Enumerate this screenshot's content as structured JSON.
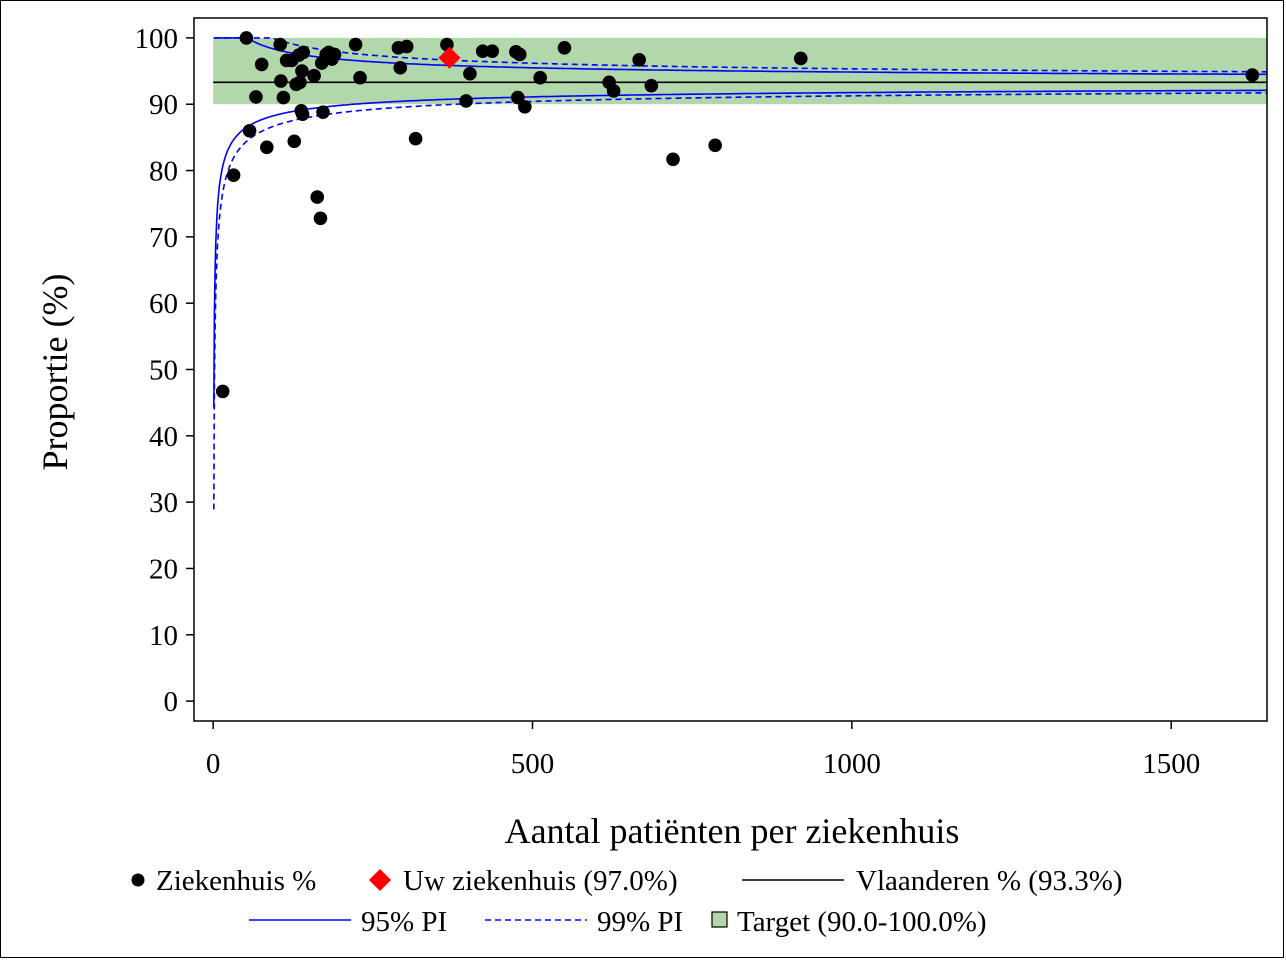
{
  "chart_data": {
    "type": "scatter",
    "xlabel": "Aantal patiënten per ziekenhuis",
    "ylabel": "Proportie (%)",
    "xlim": [
      -30,
      1650
    ],
    "ylim": [
      -3,
      103
    ],
    "xticks": [
      0,
      500,
      1000,
      1500
    ],
    "yticks": [
      0,
      10,
      20,
      30,
      40,
      50,
      60,
      70,
      80,
      90,
      100
    ],
    "xtick_labels": [
      "0",
      "500",
      "1000",
      "1500"
    ],
    "ytick_labels": [
      "0",
      "10",
      "20",
      "30",
      "40",
      "50",
      "60",
      "70",
      "80",
      "90",
      "100"
    ],
    "grid": false,
    "legend_position": "bottom",
    "series": [
      {
        "name": "Ziekenhuis %",
        "marker": "circle",
        "color": "#000000",
        "points": [
          [
            15,
            46.7
          ],
          [
            32,
            79.3
          ],
          [
            52,
            100
          ],
          [
            57,
            86.0
          ],
          [
            67,
            91.1
          ],
          [
            76,
            96.0
          ],
          [
            84,
            83.5
          ],
          [
            105,
            99.0
          ],
          [
            106,
            93.5
          ],
          [
            110,
            91.0
          ],
          [
            115,
            96.6
          ],
          [
            123,
            96.6
          ],
          [
            127,
            84.4
          ],
          [
            130,
            93.0
          ],
          [
            134,
            97.4
          ],
          [
            136,
            93.3
          ],
          [
            138,
            89.0
          ],
          [
            139,
            95.0
          ],
          [
            140,
            88.5
          ],
          [
            141,
            97.8
          ],
          [
            158,
            94.3
          ],
          [
            163,
            76.0
          ],
          [
            168,
            72.8
          ],
          [
            170,
            96.2
          ],
          [
            172,
            88.8
          ],
          [
            177,
            97.5
          ],
          [
            181,
            97.8
          ],
          [
            186,
            96.8
          ],
          [
            190,
            97.5
          ],
          [
            223,
            99.0
          ],
          [
            230,
            94.0
          ],
          [
            290,
            98.5
          ],
          [
            293,
            95.5
          ],
          [
            303,
            98.7
          ],
          [
            317,
            84.8
          ],
          [
            366,
            99.0
          ],
          [
            396,
            90.5
          ],
          [
            402,
            94.6
          ],
          [
            422,
            98.0
          ],
          [
            437,
            98.0
          ],
          [
            474,
            97.9
          ],
          [
            477,
            91.0
          ],
          [
            480,
            97.5
          ],
          [
            488,
            89.6
          ],
          [
            512,
            94.0
          ],
          [
            550,
            98.5
          ],
          [
            620,
            93.3
          ],
          [
            627,
            92.0
          ],
          [
            667,
            96.7
          ],
          [
            686,
            92.8
          ],
          [
            720,
            81.7
          ],
          [
            786,
            83.8
          ],
          [
            920,
            96.9
          ],
          [
            1627,
            94.4
          ]
        ]
      },
      {
        "name": "Uw ziekenhuis (97.0%)",
        "marker": "diamond",
        "color": "#ff0000",
        "points": [
          [
            370,
            97.0
          ]
        ]
      },
      {
        "name": "Vlaanderen % (93.3%)",
        "type": "hline",
        "color": "#000000",
        "value": 93.3
      },
      {
        "name": "95% PI",
        "type": "funnel",
        "color": "#0000ff",
        "line_style": "solid",
        "z": 1.96
      },
      {
        "name": "99% PI",
        "type": "funnel",
        "color": "#0000ff",
        "line_style": "dashed",
        "z": 2.576
      },
      {
        "name": "Target (90.0-100.0%)",
        "type": "band",
        "color": "#b2d7aa",
        "range": [
          90,
          100
        ]
      }
    ]
  }
}
